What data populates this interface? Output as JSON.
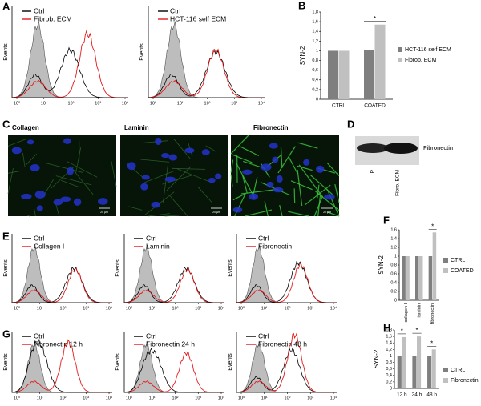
{
  "labels": [
    "A",
    "B",
    "C",
    "D",
    "E",
    "F",
    "G",
    "H"
  ],
  "histograms": {
    "y_label": "Events",
    "x_ticks": [
      "10⁰",
      "10¹",
      "10²",
      "10³",
      "10⁴"
    ],
    "items": [
      {
        "legend": [
          "Ctrl",
          "Fibrob. ECM"
        ]
      },
      {
        "legend": [
          "Ctrl",
          "HCT-116 self ECM"
        ]
      },
      {
        "legend": [
          "Ctrl",
          "Collagen I"
        ]
      },
      {
        "legend": [
          "Ctrl",
          "Laminin"
        ]
      },
      {
        "legend": [
          "Ctrl",
          "Fibronectin"
        ]
      },
      {
        "legend": [
          "Ctrl",
          "Fibronectin 12 h"
        ]
      },
      {
        "legend": [
          "Ctrl",
          "Fibronectin 24 h"
        ]
      },
      {
        "legend": [
          "Ctrl",
          "Fibronectin 48 h"
        ]
      }
    ]
  },
  "images": {
    "titles": [
      "Collagen",
      "Laminin",
      "Fibronectin"
    ],
    "scale_bar": "20 µm"
  },
  "blot": {
    "band_label": "Fibronectin",
    "lanes": [
      "P",
      "Fibro. ECM"
    ]
  },
  "chart_data": [
    {
      "type": "bar",
      "y_label": "SYN-2",
      "categories": [
        "CTRL",
        "COATED"
      ],
      "series": [
        {
          "name": "HCT-116 self ECM",
          "color": "#7f7f7f",
          "values": [
            1,
            1.02
          ]
        },
        {
          "name": "Fibrob. ECM",
          "color": "#c0c0c0",
          "values": [
            1,
            1.54
          ]
        }
      ],
      "ylim": [
        0,
        1.8
      ],
      "yticks": [
        0,
        {
          "value": 0.2,
          "label": "0,2"
        },
        {
          "value": 0.4,
          "label": "0,4"
        },
        {
          "value": 0.6,
          "label": "0,6"
        },
        {
          "value": 0.8,
          "label": "0,8"
        },
        1,
        {
          "value": 1.2,
          "label": "1,2"
        },
        {
          "value": 1.4,
          "label": "1,4"
        },
        {
          "value": 1.6,
          "label": "1,6"
        },
        {
          "value": 1.8,
          "label": "1,8"
        }
      ],
      "annotations": [
        {
          "text": "*",
          "x": "COATED"
        }
      ]
    },
    {
      "type": "bar",
      "y_label": "SYN-2",
      "categories": [
        "collagen I",
        "laminin",
        "fibronectin"
      ],
      "series": [
        {
          "name": "CTRL",
          "color": "#7f7f7f",
          "values": [
            1,
            1,
            1
          ]
        },
        {
          "name": "COATED",
          "color": "#c0c0c0",
          "values": [
            1,
            1,
            1.54
          ]
        }
      ],
      "ylim": [
        0,
        1.6
      ],
      "yticks": [
        0,
        {
          "value": 0.2,
          "label": "0,2"
        },
        {
          "value": 0.4,
          "label": "0,4"
        },
        {
          "value": 0.6,
          "label": "0,6"
        },
        {
          "value": 0.8,
          "label": "0,8"
        },
        1,
        {
          "value": 1.2,
          "label": "1,2"
        },
        {
          "value": 1.4,
          "label": "1,4"
        },
        {
          "value": 1.6,
          "label": "1,6"
        }
      ],
      "annotations": [
        {
          "text": "*",
          "x": "fibronectin"
        }
      ]
    },
    {
      "type": "bar",
      "y_label": "SYN-2",
      "categories": [
        "12 h",
        "24 h",
        "48 h"
      ],
      "series": [
        {
          "name": "CTRL",
          "color": "#7f7f7f",
          "values": [
            1,
            1,
            1
          ]
        },
        {
          "name": "Fibronectin",
          "color": "#c0c0c0",
          "values": [
            1.58,
            1.6,
            1.2
          ]
        }
      ],
      "ylim": [
        0,
        1.8
      ],
      "yticks": [
        0,
        {
          "value": 0.2,
          "label": "0,2"
        },
        {
          "value": 0.4,
          "label": "0,4"
        },
        {
          "value": 0.6,
          "label": "0,6"
        },
        {
          "value": 0.8,
          "label": "0,8"
        },
        1,
        {
          "value": 1.2,
          "label": "1,2"
        },
        {
          "value": 1.4,
          "label": "1,4"
        },
        {
          "value": 1.6,
          "label": "1,6"
        },
        {
          "value": 1.8,
          "label": "1,8"
        }
      ],
      "annotations": [
        {
          "text": "*",
          "x": "12 h"
        },
        {
          "text": "*",
          "x": "24 h"
        },
        {
          "text": "*",
          "x": "48 h"
        }
      ]
    }
  ]
}
